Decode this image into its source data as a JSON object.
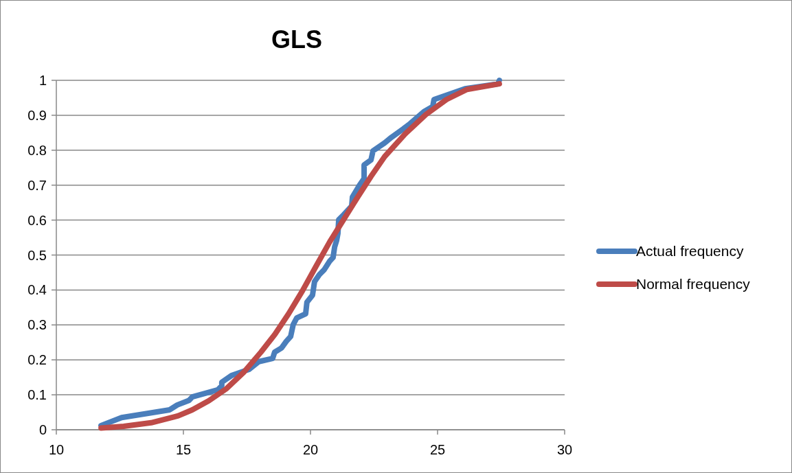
{
  "chart_data": {
    "type": "line",
    "title": "GLS",
    "xlim": [
      10,
      30
    ],
    "xticks": [
      10,
      15,
      20,
      25,
      30
    ],
    "ylim": [
      0,
      1
    ],
    "yticks": [
      0,
      0.1,
      0.2,
      0.3,
      0.4,
      0.5,
      0.6,
      0.7,
      0.8,
      0.9,
      1
    ],
    "grid": "y",
    "legend": "right",
    "marker": "none",
    "line_style": "solid",
    "series": [
      {
        "name": "Actual frequency",
        "color": "#4a7ebb",
        "x": [
          11.76,
          12.57,
          14.46,
          14.76,
          15.22,
          15.35,
          16.35,
          16.51,
          16.51,
          16.89,
          17.43,
          17.59,
          17.97,
          18.51,
          18.59,
          18.86,
          19.05,
          19.22,
          19.32,
          19.46,
          19.81,
          19.86,
          20.08,
          20.16,
          20.35,
          20.54,
          20.76,
          20.89,
          20.95,
          21.03,
          21.08,
          21.11,
          21.3,
          21.62,
          21.65,
          21.92,
          22.11,
          22.11,
          22.38,
          22.46,
          22.92,
          23.19,
          23.65,
          23.92,
          24.46,
          24.81,
          24.86,
          25.81,
          26.08,
          27.38,
          27.43
        ],
        "values": [
          0.012,
          0.035,
          0.057,
          0.071,
          0.084,
          0.094,
          0.114,
          0.126,
          0.136,
          0.155,
          0.169,
          0.173,
          0.195,
          0.204,
          0.222,
          0.234,
          0.253,
          0.267,
          0.301,
          0.32,
          0.332,
          0.365,
          0.385,
          0.424,
          0.444,
          0.458,
          0.483,
          0.493,
          0.523,
          0.542,
          0.562,
          0.601,
          0.615,
          0.64,
          0.666,
          0.699,
          0.719,
          0.758,
          0.772,
          0.798,
          0.821,
          0.837,
          0.861,
          0.876,
          0.91,
          0.925,
          0.945,
          0.969,
          0.976,
          0.99,
          1.0
        ]
      },
      {
        "name": "Normal frequency",
        "color": "#be4b48",
        "x": [
          11.76,
          12.65,
          13.73,
          14.8,
          15.35,
          16.0,
          16.7,
          17.38,
          18.05,
          18.6,
          19.14,
          19.68,
          20.22,
          20.76,
          21.3,
          21.84,
          22.38,
          22.92,
          23.73,
          24.54,
          25.35,
          26.16,
          27.43
        ],
        "values": [
          0.005,
          0.01,
          0.02,
          0.04,
          0.057,
          0.083,
          0.118,
          0.165,
          0.222,
          0.273,
          0.332,
          0.397,
          0.468,
          0.538,
          0.601,
          0.664,
          0.725,
          0.782,
          0.847,
          0.902,
          0.945,
          0.974,
          0.99
        ]
      }
    ]
  }
}
